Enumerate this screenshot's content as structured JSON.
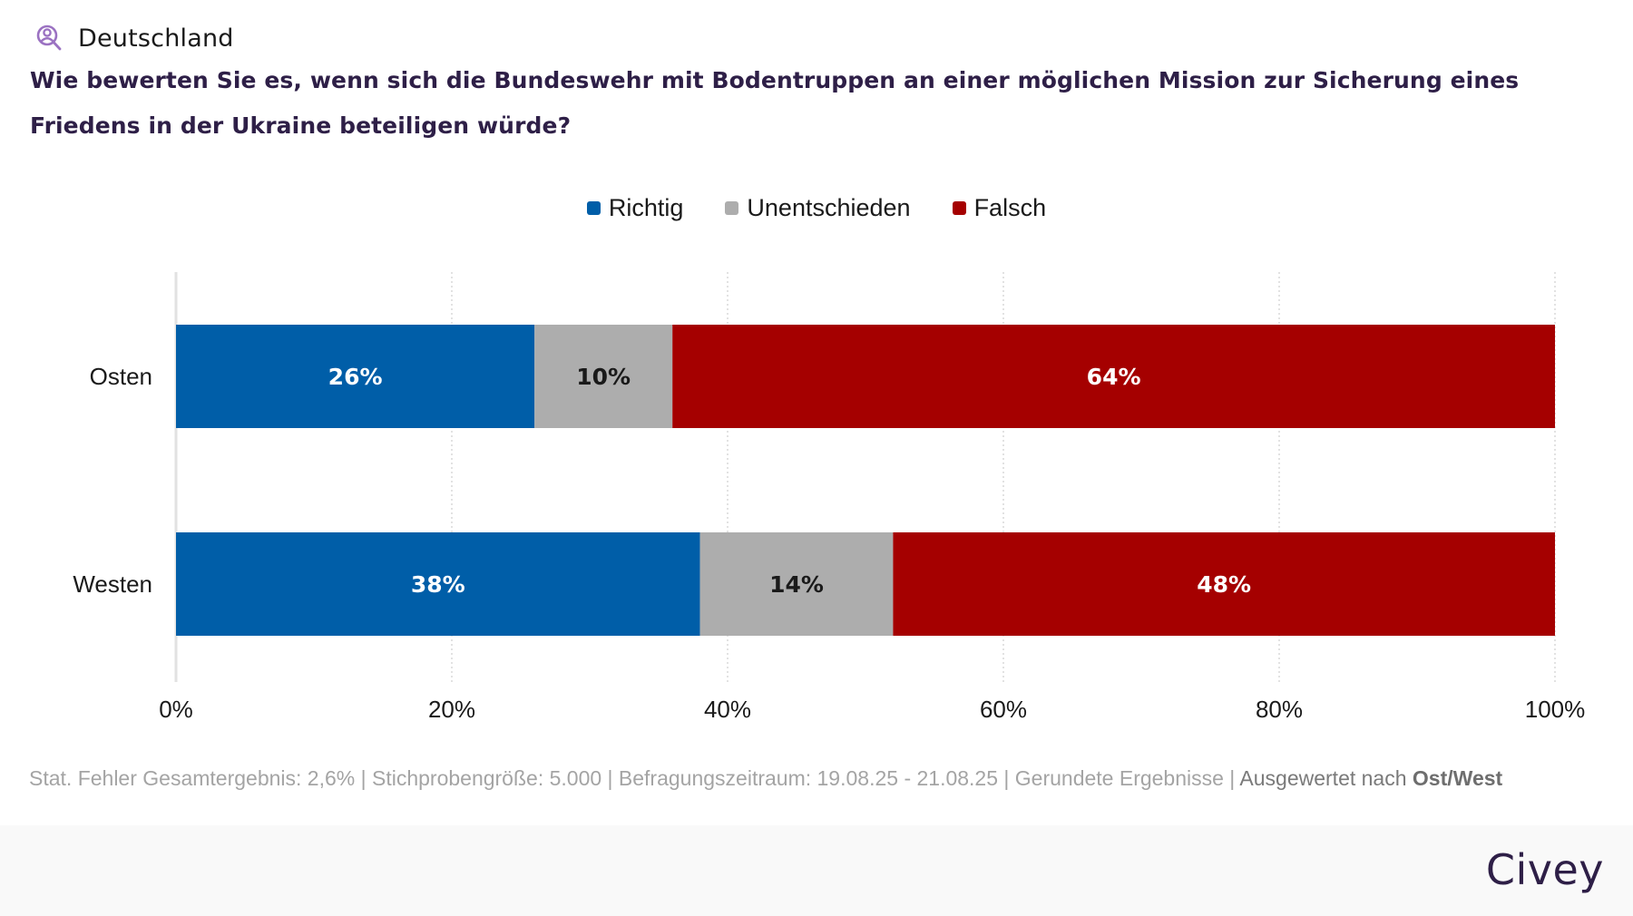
{
  "header": {
    "region_icon": "user-search-icon",
    "region": "Deutschland",
    "question": "Wie bewerten Sie es, wenn sich die Bundeswehr mit Bodentruppen an einer möglichen Mission zur Sicherung eines Friedens in der Ukraine beteiligen würde?"
  },
  "colors": {
    "richtig": "#005ea8",
    "unentschieden": "#adadad",
    "falsch": "#a50000",
    "title": "#2e1f47",
    "icon": "#9b72c2"
  },
  "chart_data": {
    "type": "bar",
    "orientation": "horizontal",
    "stacked": true,
    "title": "Wie bewerten Sie es, wenn sich die Bundeswehr mit Bodentruppen an einer möglichen Mission zur Sicherung eines Friedens in der Ukraine beteiligen würde?",
    "categories": [
      "Osten",
      "Westen"
    ],
    "series": [
      {
        "name": "Richtig",
        "color": "#005ea8",
        "values": [
          26,
          38
        ],
        "labels": [
          "26%",
          "38%"
        ],
        "label_color": "#ffffff"
      },
      {
        "name": "Unentschieden",
        "color": "#adadad",
        "values": [
          10,
          14
        ],
        "labels": [
          "10%",
          "14%"
        ],
        "label_color": "#1a1a1a"
      },
      {
        "name": "Falsch",
        "color": "#a50000",
        "values": [
          64,
          48
        ],
        "labels": [
          "64%",
          "48%"
        ],
        "label_color": "#ffffff"
      }
    ],
    "xlabel": "",
    "ylabel": "",
    "xlim": [
      0,
      100
    ],
    "xticks": [
      0,
      20,
      40,
      60,
      80,
      100
    ],
    "xtick_labels": [
      "0%",
      "20%",
      "40%",
      "60%",
      "80%",
      "100%"
    ],
    "grid": "vertical dotted",
    "legend_position": "top-center"
  },
  "footer": {
    "stats": "Stat. Fehler Gesamtergebnis: 2,6% | Stichprobengröße: 5.000 | Befragungszeitraum: 19.08.25 - 21.08.25 | Gerundete Ergebnisse | ",
    "evaluated_prefix": "Ausgewertet nach ",
    "evaluated_value": "Ost/West"
  },
  "brand": {
    "logo_text": "Civey"
  }
}
